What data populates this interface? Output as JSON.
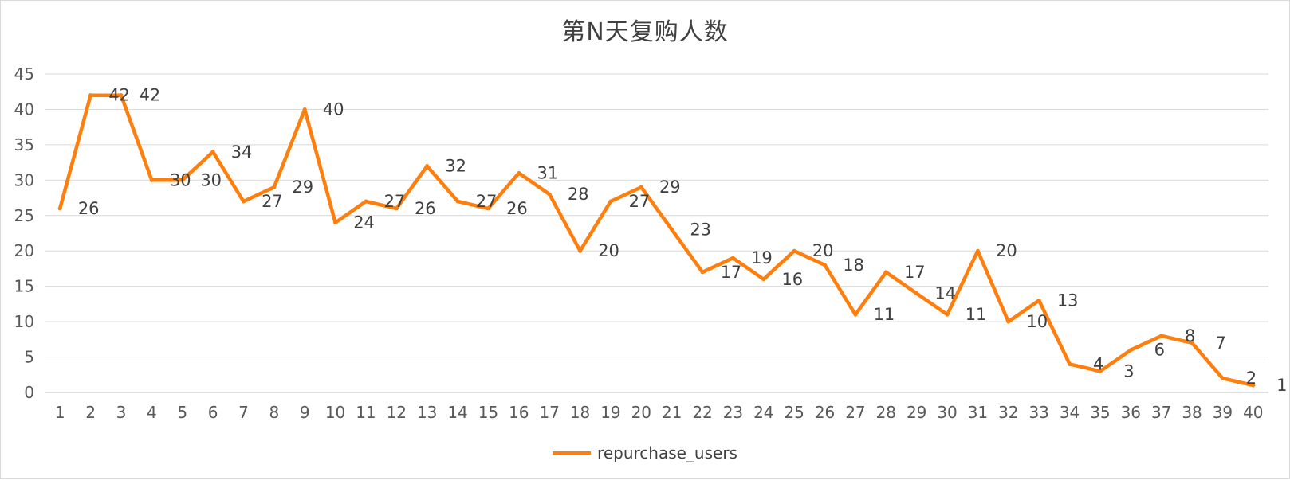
{
  "chart_data": {
    "type": "line",
    "title": "第N天复购人数",
    "xlabel": "",
    "ylabel": "",
    "categories": [
      "1",
      "2",
      "3",
      "4",
      "5",
      "6",
      "7",
      "8",
      "9",
      "10",
      "11",
      "12",
      "13",
      "14",
      "15",
      "16",
      "17",
      "18",
      "19",
      "20",
      "21",
      "22",
      "23",
      "24",
      "25",
      "26",
      "27",
      "28",
      "29",
      "30",
      "31",
      "32",
      "33",
      "34",
      "35",
      "36",
      "37",
      "38",
      "39",
      "40"
    ],
    "series": [
      {
        "name": "repurchase_users",
        "color": "#FF7F0E",
        "values": [
          26,
          42,
          42,
          30,
          30,
          34,
          27,
          29,
          40,
          24,
          27,
          26,
          32,
          27,
          26,
          31,
          28,
          20,
          27,
          29,
          23,
          17,
          19,
          16,
          20,
          18,
          11,
          17,
          14,
          11,
          20,
          10,
          13,
          4,
          3,
          6,
          8,
          7,
          2,
          1
        ]
      }
    ],
    "ylim": [
      0,
      45
    ],
    "yticks": [
      0,
      5,
      10,
      15,
      20,
      25,
      30,
      35,
      40,
      45
    ],
    "grid": true,
    "data_labels": true,
    "legend": "bottom"
  }
}
